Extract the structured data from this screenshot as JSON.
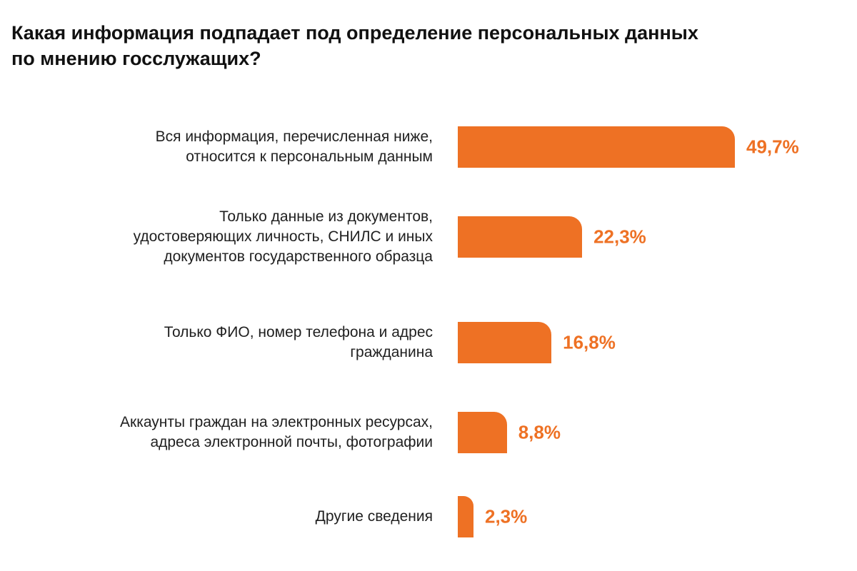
{
  "title": "Какая информация подпадает под определение персональных данных по мнению госслужащих?",
  "colors": {
    "bar": "#ee7124",
    "value_text": "#ee7124",
    "label_text": "#1f1f1f",
    "title_text": "#111111"
  },
  "chart_data": {
    "type": "bar",
    "orientation": "horizontal",
    "title": "Какая информация подпадает под определение персональных данных по мнению госслужащих?",
    "xlabel": "",
    "ylabel": "",
    "unit": "%",
    "categories": [
      "Вся информация, перечисленная ниже, относится к персональным данным",
      "Только данные из документов, удостоверяющих личность, СНИЛС и иных документов государственного образца",
      "Только ФИО, номер телефона и адрес гражданина",
      "Аккаунты граждан на электронных ресурсах, адреса электронной почты, фотографии",
      "Другие сведения"
    ],
    "category_lines": [
      [
        "Вся информация, перечисленная ниже,",
        "относится к персональным данным"
      ],
      [
        "Только данные из документов,",
        "удостоверяющих личность, СНИЛС и иных",
        "документов государственного образца"
      ],
      [
        "Только ФИО, номер телефона и адрес",
        "гражданина"
      ],
      [
        "Аккаунты граждан на электронных ресурсах,",
        "адреса электронной почты, фотографии"
      ],
      [
        "Другие сведения"
      ]
    ],
    "values": [
      49.7,
      22.3,
      16.8,
      8.8,
      2.3
    ],
    "value_labels": [
      "49,7%",
      "22,3%",
      "16,8%",
      "8,8%",
      "2,3%"
    ],
    "grid": false,
    "legend": "none"
  }
}
